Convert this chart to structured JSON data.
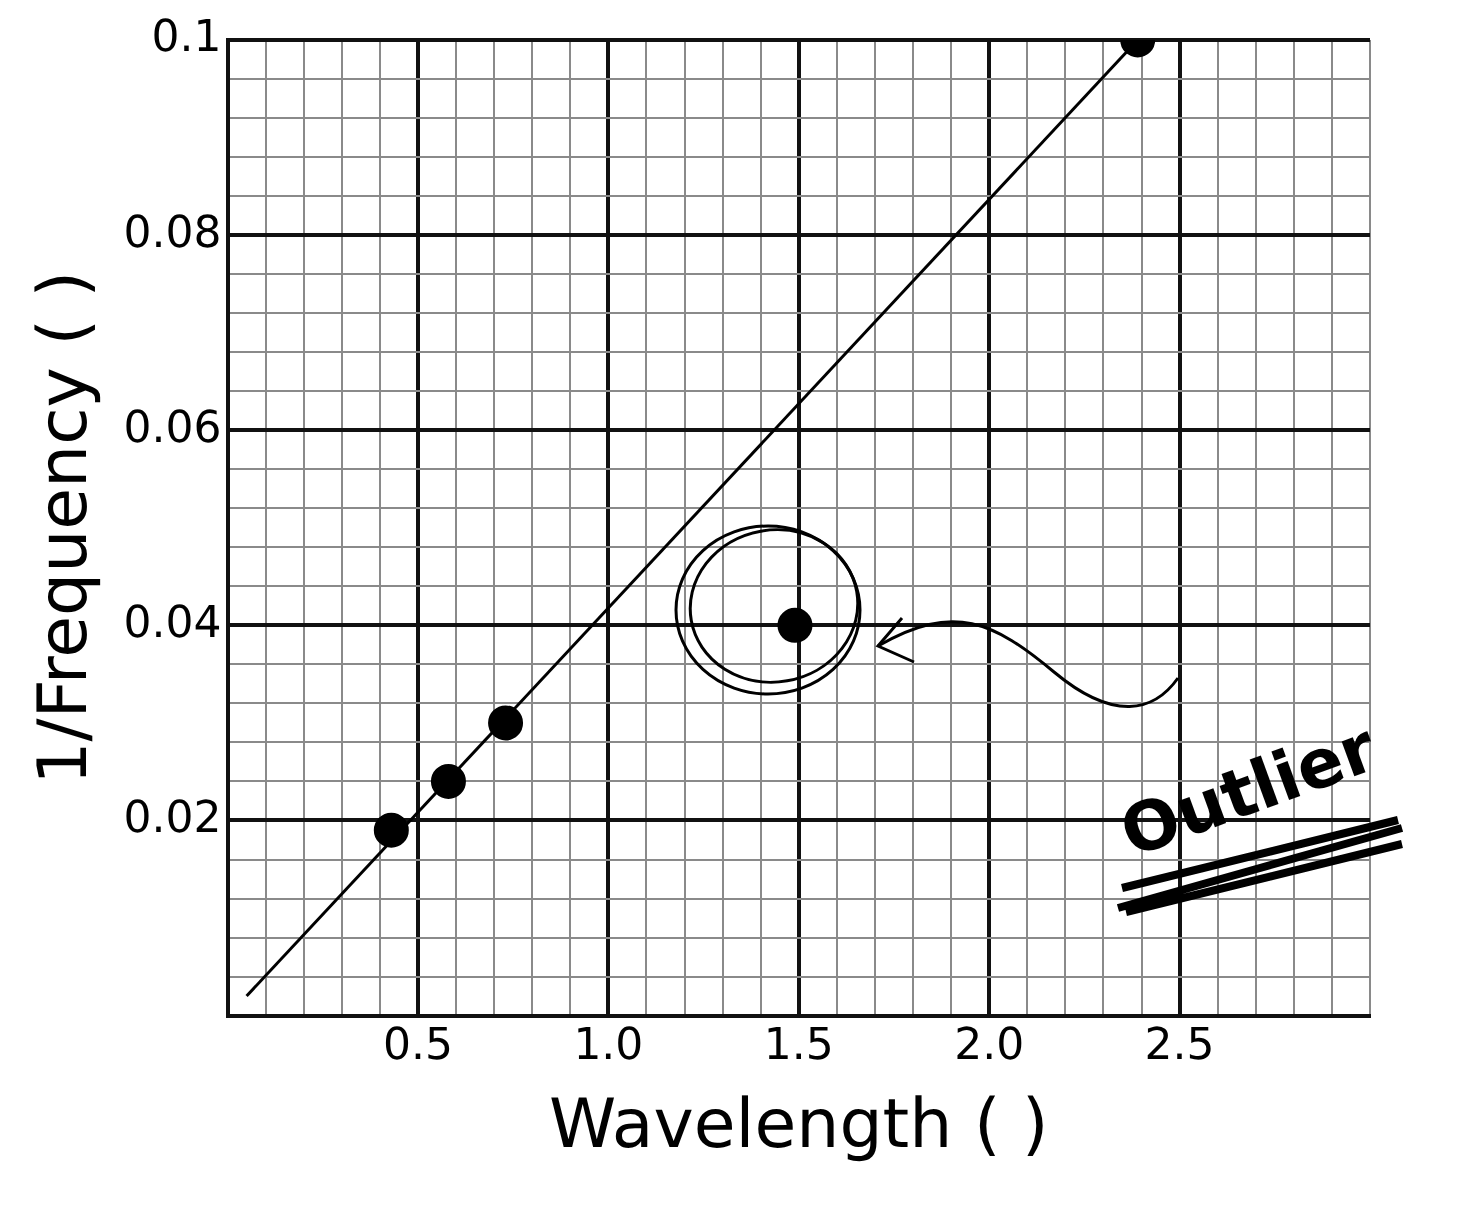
{
  "chart_data": {
    "type": "scatter",
    "xlabel": "Wavelength ( )",
    "ylabel": "1/Frequency ( )",
    "xlim": [
      0,
      3
    ],
    "ylim": [
      0,
      0.1
    ],
    "xticks": [
      {
        "value": 0,
        "label": null
      },
      {
        "value": 0.1,
        "label": null
      },
      {
        "value": 0.2,
        "label": null
      },
      {
        "value": 0.3,
        "label": null
      },
      {
        "value": 0.4,
        "label": null
      },
      0.5,
      {
        "value": 0.6,
        "label": null
      },
      {
        "value": 0.7,
        "label": null
      },
      {
        "value": 0.8,
        "label": null
      },
      {
        "value": 0.9,
        "label": null
      },
      {
        "value": 1,
        "label": "1.0"
      },
      {
        "value": 1.1,
        "label": null
      },
      {
        "value": 1.2,
        "label": null
      },
      {
        "value": 1.3,
        "label": null
      },
      {
        "value": 1.4,
        "label": null
      },
      1.5,
      {
        "value": 1.6,
        "label": null
      },
      {
        "value": 1.7,
        "label": null
      },
      {
        "value": 1.8,
        "label": null
      },
      {
        "value": 1.9,
        "label": null
      },
      {
        "value": 2,
        "label": "2.0"
      },
      {
        "value": 2.1,
        "label": null
      },
      {
        "value": 2.2,
        "label": null
      },
      {
        "value": 2.3,
        "label": null
      },
      {
        "value": 2.4,
        "label": null
      },
      2.5,
      {
        "value": 2.6,
        "label": null
      },
      {
        "value": 2.7,
        "label": null
      },
      {
        "value": 2.8,
        "label": null
      },
      {
        "value": 2.9,
        "label": null
      },
      {
        "value": 3,
        "label": null
      }
    ],
    "yticks": [
      {
        "value": 0,
        "label": null
      },
      {
        "value": 0.004,
        "label": null
      },
      {
        "value": 0.008,
        "label": null
      },
      {
        "value": 0.012,
        "label": null
      },
      {
        "value": 0.016,
        "label": null
      },
      0.02,
      {
        "value": 0.024,
        "label": null
      },
      {
        "value": 0.028,
        "label": null
      },
      {
        "value": 0.032,
        "label": null
      },
      {
        "value": 0.036,
        "label": null
      },
      0.04,
      {
        "value": 0.044,
        "label": null
      },
      {
        "value": 0.048,
        "label": null
      },
      {
        "value": 0.052,
        "label": null
      },
      {
        "value": 0.056,
        "label": null
      },
      0.06,
      {
        "value": 0.064,
        "label": null
      },
      {
        "value": 0.068,
        "label": null
      },
      {
        "value": 0.072,
        "label": null
      },
      {
        "value": 0.076,
        "label": null
      },
      0.08,
      {
        "value": 0.084,
        "label": null
      },
      {
        "value": 0.088,
        "label": null
      },
      {
        "value": 0.092,
        "label": null
      },
      {
        "value": 0.096,
        "label": null
      },
      0.1
    ],
    "grid": true,
    "legend": false,
    "marker": "circle",
    "series": [
      {
        "type": "scatter",
        "color": "#000000",
        "x": [
          0.43,
          0.58,
          0.73,
          1.49,
          2.39
        ],
        "values": [
          0.019,
          0.024,
          0.03,
          0.04,
          0.1
        ]
      },
      {
        "type": "line",
        "color": "#000000",
        "marker": "none",
        "line_style": "solid",
        "x": [
          0.05,
          2.39
        ],
        "values": [
          0.002,
          0.1
        ]
      }
    ],
    "annotations": [
      "Outlier"
    ]
  }
}
